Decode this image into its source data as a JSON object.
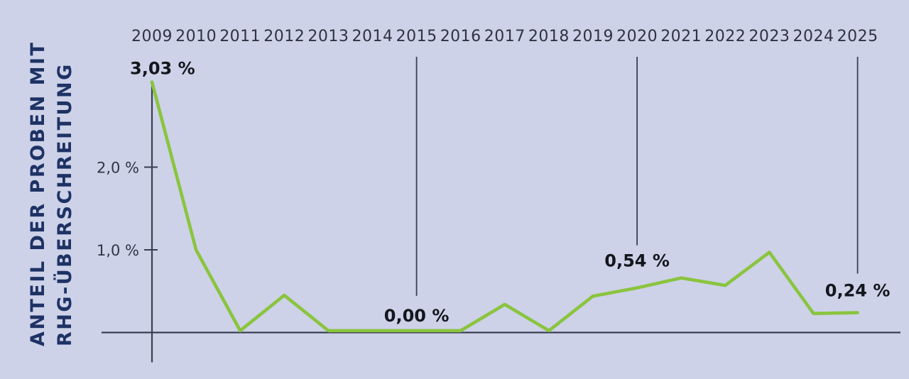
{
  "y_axis_title": {
    "line1": "ANTEIL DER PROBEN MIT",
    "line2": "RHG-ÜBERSCHREITUNG"
  },
  "colors": {
    "background": "#cdd2e8",
    "line_green": "#8ac43e",
    "axis": "#3b3f54",
    "ref_line": "#3b3f54",
    "year_text": "#2e3243",
    "tick_text": "#303548",
    "data_label_text": "#14161d",
    "title_text": "#1e3264"
  },
  "chart_data": {
    "type": "line",
    "title": "",
    "xlabel": "",
    "ylabel": "Anteil der Proben mit RHG-Überschreitung",
    "categories": [
      "2009",
      "2010",
      "2011",
      "2012",
      "2013",
      "2014",
      "2015",
      "2016",
      "2017",
      "2018",
      "2019",
      "2020",
      "2021",
      "2022",
      "2023",
      "2024",
      "2025"
    ],
    "values": [
      3.03,
      1.0,
      0.0,
      0.45,
      0.0,
      0.0,
      0.0,
      0.0,
      0.34,
      0.0,
      0.44,
      0.54,
      0.66,
      0.57,
      0.97,
      0.23,
      0.24
    ],
    "unit": "%",
    "ylim": [
      0,
      3.2
    ],
    "grid": false,
    "legend": "none",
    "x_axis_position": "labels-on-top",
    "yticks": [
      {
        "value": 1.0,
        "label": "1,0 %"
      },
      {
        "value": 2.0,
        "label": "2,0 %"
      }
    ],
    "annotations": [
      {
        "year": "2009",
        "label": "3,03 %",
        "ref_line": false
      },
      {
        "year": "2015",
        "label": "0,00 %",
        "ref_line": true
      },
      {
        "year": "2020",
        "label": "0,54 %",
        "ref_line": true
      },
      {
        "year": "2025",
        "label": "0,24 %",
        "ref_line": true
      }
    ]
  }
}
